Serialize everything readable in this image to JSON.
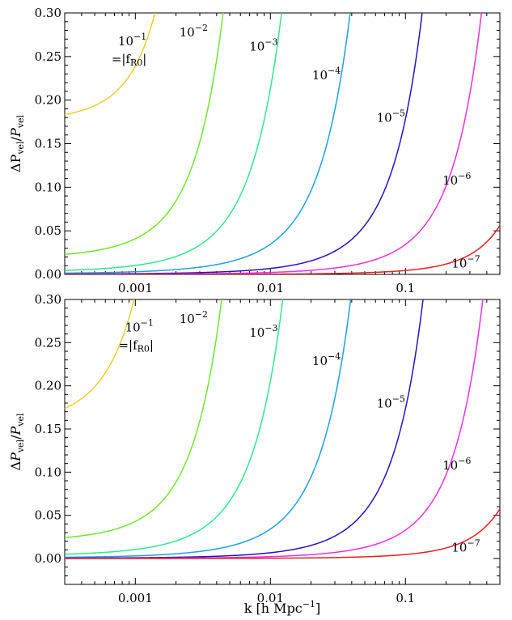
{
  "chart_data": [
    {
      "type": "line",
      "xscale": "log",
      "xlim": [
        0.0003,
        0.5
      ],
      "ylim": [
        0.0,
        0.3
      ],
      "ylabel": "ΔP_vel/P_vel",
      "ylabel_parts": {
        "delta": "Δ",
        "p1": "P",
        "sub1": "vel",
        "slash": "/",
        "p2": "P",
        "sub2": "vel"
      },
      "x_ticks": [
        {
          "value": 0.001,
          "label": "0.001"
        },
        {
          "value": 0.01,
          "label": "0.01"
        },
        {
          "value": 0.1,
          "label": "0.1"
        }
      ],
      "y_ticks": [
        {
          "value": 0.0,
          "label": "0.00"
        },
        {
          "value": 0.05,
          "label": "0.05"
        },
        {
          "value": 0.1,
          "label": "0.10"
        },
        {
          "value": 0.15,
          "label": "0.15"
        },
        {
          "value": 0.2,
          "label": "0.20"
        },
        {
          "value": 0.25,
          "label": "0.25"
        },
        {
          "value": 0.3,
          "label": "0.30"
        }
      ],
      "series": [
        {
          "label_base": "10",
          "label_exp": "−1",
          "label_extra": "=|f",
          "label_extra_sub": "R0",
          "label_extra_end": "|",
          "color": "#f0cd28",
          "k0": 0.0003,
          "v0": 0.175,
          "kc": 0.0004,
          "v_at_kc": 0.188,
          "n": 2.6,
          "label_k": 0.00095,
          "label_v": 0.263
        },
        {
          "label_base": "10",
          "label_exp": "−2",
          "color": "#6ee82e",
          "k0": 0.0003,
          "v0": 0.018,
          "kc": 0.0012,
          "v_at_kc": 0.0478,
          "n": 2.4,
          "label_k": 0.0027,
          "label_v": 0.273
        },
        {
          "label_base": "10",
          "label_exp": "−3",
          "color": "#2ee88c",
          "k0": 0.0003,
          "v0": 0.0025,
          "kc": 0.0035,
          "v_at_kc": 0.0413,
          "n": 2.3,
          "label_k": 0.0089,
          "label_v": 0.257
        },
        {
          "label_base": "10",
          "label_exp": "−4",
          "color": "#1ea0e6",
          "k0": 0.0003,
          "v0": 0.0008,
          "kc": 0.012,
          "v_at_kc": 0.0446,
          "n": 2.3,
          "label_k": 0.026,
          "label_v": 0.224
        },
        {
          "label_base": "10",
          "label_exp": "−5",
          "color": "#2a10c8",
          "k0": 0.0003,
          "v0": 0.0003,
          "kc": 0.035,
          "v_at_kc": 0.0331,
          "n": 2.3,
          "label_k": 0.078,
          "label_v": 0.175
        },
        {
          "label_base": "10",
          "label_exp": "−6",
          "color": "#ee2ee6",
          "k0": 0.0003,
          "v0": 0.0001,
          "kc": 0.11,
          "v_at_kc": 0.0395,
          "n": 2.4,
          "label_k": 0.24,
          "label_v": 0.103
        },
        {
          "label_base": "10",
          "label_exp": "−7",
          "color": "#e62020",
          "k0": 0.0003,
          "v0": 0.0,
          "kc": 0.2,
          "v_at_kc": 0.0119,
          "n": 2.5,
          "label_k": 0.28,
          "label_v": 0.008
        }
      ]
    },
    {
      "type": "line",
      "xscale": "log",
      "xlim": [
        0.0003,
        0.5
      ],
      "ylim": [
        -0.03,
        0.3
      ],
      "ylabel": "ΔP_vel/P_vel",
      "ylabel_parts": {
        "delta": "Δ",
        "p1": "P",
        "sub1": "vel",
        "slash": "/",
        "p2": "P",
        "sub2": "vel"
      },
      "xlabel": "k [h Mpc−1]",
      "xlabel_parts": {
        "main": "k [h Mpc",
        "sup": "−1",
        "end": "]"
      },
      "x_ticks": [
        {
          "value": 0.001,
          "label": "0.001"
        },
        {
          "value": 0.01,
          "label": "0.01"
        },
        {
          "value": 0.1,
          "label": "0.1"
        }
      ],
      "y_ticks": [
        {
          "value": 0.0,
          "label": "0.00"
        },
        {
          "value": 0.05,
          "label": "0.05"
        },
        {
          "value": 0.1,
          "label": "0.10"
        },
        {
          "value": 0.15,
          "label": "0.15"
        },
        {
          "value": 0.2,
          "label": "0.20"
        },
        {
          "value": 0.25,
          "label": "0.25"
        },
        {
          "value": 0.3,
          "label": "0.30"
        }
      ],
      "series": [
        {
          "label_base": "10",
          "label_exp": "−1",
          "label_extra": "=|f",
          "label_extra_sub": "R0",
          "label_extra_end": "|",
          "color": "#f0cd28",
          "k0": 0.0003,
          "v0": 0.151,
          "kc": 0.0005,
          "v_at_kc": 0.199,
          "n": 2.6,
          "label_k": 0.00107,
          "label_v": 0.263
        },
        {
          "label_base": "10",
          "label_exp": "−2",
          "color": "#6ee82e",
          "k0": 0.0003,
          "v0": 0.019,
          "kc": 0.0012,
          "v_at_kc": 0.0502,
          "n": 2.4,
          "label_k": 0.0027,
          "label_v": 0.273
        },
        {
          "label_base": "10",
          "label_exp": "−3",
          "color": "#2ee88c",
          "k0": 0.0003,
          "v0": 0.003,
          "kc": 0.0035,
          "v_at_kc": 0.0403,
          "n": 2.3,
          "label_k": 0.0089,
          "label_v": 0.257
        },
        {
          "label_base": "10",
          "label_exp": "−4",
          "color": "#1ea0e6",
          "k0": 0.0003,
          "v0": 0.0008,
          "kc": 0.012,
          "v_at_kc": 0.0439,
          "n": 2.3,
          "label_k": 0.026,
          "label_v": 0.224
        },
        {
          "label_base": "10",
          "label_exp": "−5",
          "color": "#2a10c8",
          "k0": 0.0003,
          "v0": 0.0003,
          "kc": 0.035,
          "v_at_kc": 0.0322,
          "n": 2.3,
          "label_k": 0.078,
          "label_v": 0.175
        },
        {
          "label_base": "10",
          "label_exp": "−6",
          "color": "#ee2ee6",
          "k0": 0.0003,
          "v0": 0.0001,
          "kc": 0.11,
          "v_at_kc": 0.0378,
          "n": 2.4,
          "label_k": 0.24,
          "label_v": 0.103
        },
        {
          "label_base": "10",
          "label_exp": "−7",
          "color": "#e62020",
          "k0": 0.0003,
          "v0": 0.0,
          "kc": 0.2,
          "v_at_kc": 0.0122,
          "n": 2.5,
          "label_k": 0.28,
          "label_v": 0.008
        }
      ]
    }
  ]
}
